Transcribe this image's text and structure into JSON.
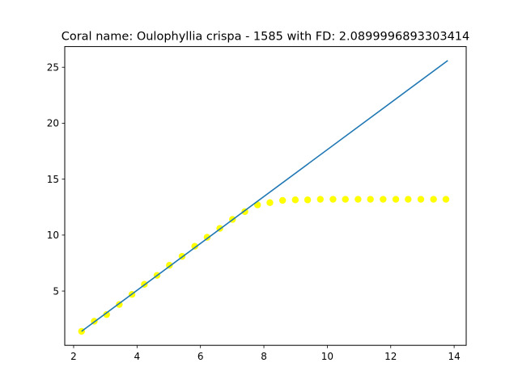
{
  "chart_data": {
    "type": "scatter",
    "title": "Coral name: Oulophyllia crispa - 1585 with FD: 2.0899996893303414",
    "xlabel": "",
    "ylabel": "",
    "xlim": [
      1.72,
      14.38
    ],
    "ylim": [
      0.15,
      26.85
    ],
    "xticks": [
      2,
      4,
      6,
      8,
      10,
      12,
      14
    ],
    "yticks": [
      5,
      10,
      15,
      20,
      25
    ],
    "xtick_labels": [
      "2",
      "4",
      "6",
      "8",
      "10",
      "12",
      "14"
    ],
    "ytick_labels": [
      "5",
      "10",
      "15",
      "20",
      "25"
    ],
    "grid": false,
    "legend": "none",
    "series": [
      {
        "kind": "scatter",
        "color": "#ffff00",
        "x": [
          2.25,
          2.65,
          3.04,
          3.44,
          3.84,
          4.23,
          4.63,
          5.02,
          5.42,
          5.82,
          6.21,
          6.61,
          7.01,
          7.4,
          7.8,
          8.19,
          8.59,
          8.99,
          9.38,
          9.78,
          10.18,
          10.57,
          10.97,
          11.36,
          11.76,
          12.16,
          12.55,
          12.95,
          13.35,
          13.74
        ],
        "y": [
          1.4,
          2.3,
          2.9,
          3.8,
          4.7,
          5.6,
          6.4,
          7.3,
          8.1,
          9.0,
          9.8,
          10.6,
          11.4,
          12.1,
          12.7,
          12.9,
          13.1,
          13.15,
          13.15,
          13.2,
          13.2,
          13.2,
          13.2,
          13.2,
          13.2,
          13.2,
          13.2,
          13.2,
          13.2,
          13.2
        ]
      },
      {
        "kind": "line",
        "color": "#1f77b4",
        "x": [
          2.25,
          13.8
        ],
        "y": [
          1.4,
          25.6
        ]
      }
    ]
  }
}
